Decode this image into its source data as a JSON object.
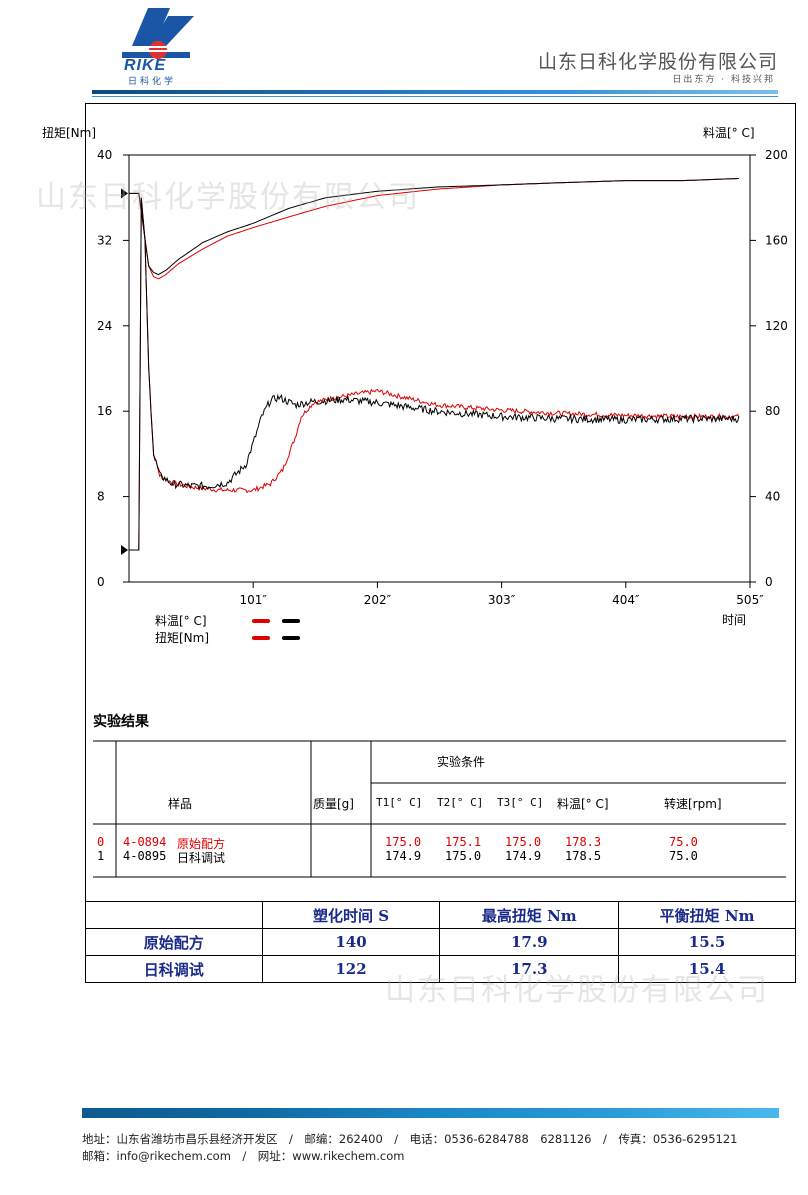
{
  "header": {
    "logo_word": "RIKE",
    "logo_sub": "日科化学",
    "company_name": "山东日科化学股份有限公司",
    "slogan": "日出东方 · 科技兴邦"
  },
  "watermark": "山东日科化学股份有限公司",
  "chart_labels": {
    "ylabel_left": "扭矩[Nm]",
    "ylabel_right": "料温[° C]",
    "xlabel": "时间",
    "legend_temp": "料温[° C]",
    "legend_torque": "扭矩[Nm]",
    "left_ticks": [
      "40",
      "32",
      "24",
      "16",
      "8",
      "0"
    ],
    "right_ticks": [
      "200",
      "160",
      "120",
      "80",
      "40",
      "0"
    ],
    "x_ticks": [
      "101″",
      "202″",
      "303″",
      "404″",
      "505″"
    ]
  },
  "chart_data": {
    "type": "line",
    "xlabel": "时间",
    "ylabel": "扭矩[Nm]",
    "y2label": "料温[° C]",
    "xlim": [
      0,
      505
    ],
    "ylim": [
      0,
      40
    ],
    "y2lim": [
      0,
      200
    ],
    "series": [
      {
        "name": "料温[° C]",
        "axis": "right",
        "color": "#e00000",
        "x": [
          0,
          8,
          12,
          16,
          20,
          24,
          30,
          40,
          60,
          80,
          101,
          130,
          160,
          202,
          250,
          303,
          350,
          404,
          450,
          496
        ],
        "y": [
          182,
          182,
          165,
          148,
          143,
          142,
          144,
          149,
          156,
          162,
          166,
          171,
          176,
          181,
          184,
          186,
          187,
          188,
          188,
          189
        ]
      },
      {
        "name": "料温[° C]",
        "axis": "right",
        "color": "#000000",
        "x": [
          0,
          8,
          12,
          16,
          20,
          24,
          30,
          40,
          60,
          80,
          101,
          130,
          160,
          202,
          250,
          303,
          350,
          404,
          450,
          496
        ],
        "y": [
          182,
          182,
          165,
          148,
          145,
          144,
          146,
          151,
          159,
          164,
          168,
          175,
          180,
          183,
          185,
          186,
          187,
          188,
          188,
          189
        ]
      },
      {
        "name": "扭矩[Nm]",
        "axis": "left",
        "color": "#e00000",
        "x": [
          0,
          8,
          10,
          13,
          16,
          20,
          25,
          35,
          50,
          75,
          101,
          115,
          125,
          135,
          140,
          150,
          165,
          185,
          202,
          220,
          250,
          303,
          350,
          404,
          450,
          496
        ],
        "y": [
          3,
          3,
          36,
          32,
          20,
          12,
          10,
          9.3,
          8.9,
          8.6,
          8.6,
          9.2,
          10.5,
          13.5,
          15.5,
          16.8,
          17.2,
          17.6,
          17.9,
          17.4,
          16.6,
          16.1,
          15.8,
          15.6,
          15.5,
          15.5
        ]
      },
      {
        "name": "扭矩[Nm]",
        "axis": "left",
        "color": "#000000",
        "x": [
          0,
          8,
          10,
          13,
          16,
          20,
          25,
          35,
          50,
          65,
          80,
          95,
          101,
          108,
          115,
          122,
          135,
          150,
          175,
          202,
          250,
          303,
          350,
          404,
          450,
          496
        ],
        "y": [
          3,
          3,
          36,
          32,
          20,
          12,
          10,
          9.2,
          9.0,
          9.0,
          9.3,
          11,
          13,
          15.5,
          17,
          17.3,
          16.6,
          16.9,
          17.1,
          16.8,
          16.0,
          15.5,
          15.3,
          15.2,
          15.3,
          15.3
        ]
      }
    ]
  },
  "experiment": {
    "title": "实验结果",
    "cond_header": "实验条件",
    "col_sample": "样品",
    "col_mass": "质量[g]",
    "col_t1": "T1[° C]",
    "col_t2": "T2[° C]",
    "col_t3": "T3[° C]",
    "col_temp": "料温[° C]",
    "col_speed": "转速[rpm]",
    "rows": [
      {
        "idx": "0",
        "id": "4-0894",
        "name": "原始配方",
        "t1": "175.0",
        "t2": "175.1",
        "t3": "175.0",
        "temp": "178.3",
        "speed": "75.0",
        "color": "#e00000"
      },
      {
        "idx": "1",
        "id": "4-0895",
        "name": "日科调试",
        "t1": "174.9",
        "t2": "175.0",
        "t3": "174.9",
        "temp": "178.5",
        "speed": "75.0",
        "color": "#000000"
      }
    ]
  },
  "summary": {
    "headers": [
      "",
      "塑化时间 S",
      "最高扭矩 Nm",
      "平衡扭矩 Nm"
    ],
    "rows": [
      [
        "原始配方",
        "140",
        "17.9",
        "15.5"
      ],
      [
        "日科调试",
        "122",
        "17.3",
        "15.4"
      ]
    ]
  },
  "footer": {
    "line1": "地址：山东省潍坊市昌乐县经济开发区　/　邮编：262400　/　电话：0536-6284788　6281126　/　传真：0536-6295121",
    "line2": "邮箱：info@rikechem.com　/　网址：www.rikechem.com"
  }
}
